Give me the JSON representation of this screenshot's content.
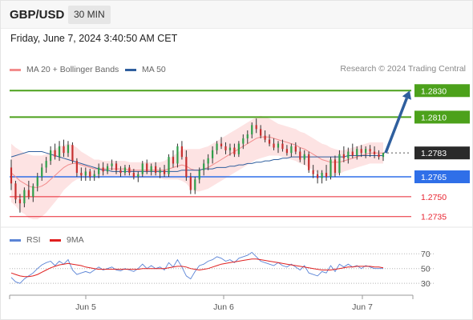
{
  "header": {
    "symbol": "GBP/USD",
    "timeframe": "30 MIN"
  },
  "datetime": "Friday, June 7, 2024 3:40:50 AM CET",
  "legend": {
    "ma20": {
      "label": "MA 20 + Bollinger Bands",
      "color": "#f28c8c"
    },
    "ma50": {
      "label": "MA 50",
      "color": "#2f5f9e"
    },
    "rsi": {
      "label": "RSI",
      "color": "#5b84d6"
    },
    "ma9": {
      "label": "9MA",
      "color": "#e02020"
    }
  },
  "credit": "Research © 2024 Trading Central",
  "chart_data": {
    "type": "candlestick",
    "y_range": [
      1.2727,
      1.2838
    ],
    "levels": [
      {
        "value": 1.283,
        "label": "1.2830",
        "kind": "target",
        "color": "#4ca11b"
      },
      {
        "value": 1.281,
        "label": "1.2810",
        "kind": "target",
        "color": "#4ca11b"
      },
      {
        "value": 1.2783,
        "label": "1.2783",
        "kind": "last",
        "color": "#2a2a2a"
      },
      {
        "value": 1.2765,
        "label": "1.2765",
        "kind": "pivot",
        "color": "#2f6fe8"
      },
      {
        "value": 1.275,
        "label": "1.2750",
        "kind": "support",
        "color": "#e8232f"
      },
      {
        "value": 1.2735,
        "label": "1.2735",
        "kind": "support",
        "color": "#e8232f"
      }
    ],
    "candles": [
      [
        1.2772,
        1.2778,
        1.2755,
        1.276
      ],
      [
        1.276,
        1.2762,
        1.2745,
        1.2748
      ],
      [
        1.2748,
        1.2752,
        1.2738,
        1.2745
      ],
      [
        1.2745,
        1.2757,
        1.2742,
        1.2755
      ],
      [
        1.2755,
        1.2762,
        1.2748,
        1.275
      ],
      [
        1.275,
        1.276,
        1.2746,
        1.2758
      ],
      [
        1.2758,
        1.2768,
        1.2754,
        1.2765
      ],
      [
        1.2765,
        1.2775,
        1.2762,
        1.2772
      ],
      [
        1.2772,
        1.278,
        1.2768,
        1.2777
      ],
      [
        1.2777,
        1.2788,
        1.2774,
        1.2785
      ],
      [
        1.2785,
        1.279,
        1.2778,
        1.278
      ],
      [
        1.278,
        1.2792,
        1.2777,
        1.2788
      ],
      [
        1.2788,
        1.2793,
        1.278,
        1.2783
      ],
      [
        1.2783,
        1.2792,
        1.278,
        1.2789
      ],
      [
        1.2789,
        1.2791,
        1.2775,
        1.2777
      ],
      [
        1.2777,
        1.2779,
        1.2765,
        1.2768
      ],
      [
        1.2768,
        1.2772,
        1.2762,
        1.2766
      ],
      [
        1.2766,
        1.2772,
        1.2762,
        1.2769
      ],
      [
        1.2769,
        1.2771,
        1.2762,
        1.2765
      ],
      [
        1.2765,
        1.277,
        1.2762,
        1.2767
      ],
      [
        1.2767,
        1.2775,
        1.2764,
        1.2772
      ],
      [
        1.2772,
        1.2776,
        1.2766,
        1.2769
      ],
      [
        1.2769,
        1.2775,
        1.2767,
        1.2773
      ],
      [
        1.2773,
        1.2778,
        1.277,
        1.2775
      ],
      [
        1.2775,
        1.2777,
        1.2767,
        1.277
      ],
      [
        1.277,
        1.2773,
        1.2765,
        1.2768
      ],
      [
        1.2768,
        1.2774,
        1.2766,
        1.2772
      ],
      [
        1.2772,
        1.2774,
        1.2766,
        1.2768
      ],
      [
        1.2768,
        1.2771,
        1.2763,
        1.2765
      ],
      [
        1.2765,
        1.2769,
        1.2761,
        1.2767
      ],
      [
        1.2767,
        1.2777,
        1.2765,
        1.2775
      ],
      [
        1.2775,
        1.2778,
        1.2767,
        1.2769
      ],
      [
        1.2769,
        1.2775,
        1.2766,
        1.2773
      ],
      [
        1.2773,
        1.2776,
        1.2766,
        1.2768
      ],
      [
        1.2768,
        1.2772,
        1.2764,
        1.277
      ],
      [
        1.277,
        1.2774,
        1.2765,
        1.2767
      ],
      [
        1.2767,
        1.2782,
        1.2765,
        1.278
      ],
      [
        1.278,
        1.2785,
        1.2772,
        1.2775
      ],
      [
        1.2775,
        1.279,
        1.2772,
        1.2788
      ],
      [
        1.2788,
        1.2792,
        1.2778,
        1.278
      ],
      [
        1.278,
        1.2785,
        1.2762,
        1.2765
      ],
      [
        1.2765,
        1.2768,
        1.2752,
        1.2755
      ],
      [
        1.2755,
        1.2765,
        1.2752,
        1.2763
      ],
      [
        1.2763,
        1.2772,
        1.276,
        1.277
      ],
      [
        1.277,
        1.2778,
        1.2766,
        1.2775
      ],
      [
        1.2775,
        1.2782,
        1.277,
        1.2779
      ],
      [
        1.2779,
        1.2788,
        1.2775,
        1.2785
      ],
      [
        1.2785,
        1.2792,
        1.2782,
        1.279
      ],
      [
        1.279,
        1.2795,
        1.2786,
        1.2788
      ],
      [
        1.2788,
        1.2791,
        1.2782,
        1.2785
      ],
      [
        1.2785,
        1.279,
        1.2781,
        1.2787
      ],
      [
        1.2787,
        1.279,
        1.278,
        1.2782
      ],
      [
        1.2782,
        1.2792,
        1.278,
        1.279
      ],
      [
        1.279,
        1.2797,
        1.2786,
        1.2794
      ],
      [
        1.2794,
        1.28,
        1.279,
        1.2797
      ],
      [
        1.2797,
        1.2806,
        1.2794,
        1.2804
      ],
      [
        1.2804,
        1.2809,
        1.2798,
        1.2801
      ],
      [
        1.2801,
        1.2804,
        1.2794,
        1.2796
      ],
      [
        1.2796,
        1.28,
        1.2791,
        1.2793
      ],
      [
        1.2793,
        1.2797,
        1.2788,
        1.279
      ],
      [
        1.279,
        1.2794,
        1.2785,
        1.2787
      ],
      [
        1.2787,
        1.2792,
        1.2783,
        1.279
      ],
      [
        1.279,
        1.2793,
        1.2784,
        1.2786
      ],
      [
        1.2786,
        1.2789,
        1.2781,
        1.2783
      ],
      [
        1.2783,
        1.279,
        1.278,
        1.2788
      ],
      [
        1.2788,
        1.2791,
        1.2782,
        1.2784
      ],
      [
        1.2784,
        1.2787,
        1.2776,
        1.2778
      ],
      [
        1.2778,
        1.2785,
        1.2774,
        1.2782
      ],
      [
        1.2782,
        1.2784,
        1.2768,
        1.277
      ],
      [
        1.277,
        1.2774,
        1.2764,
        1.2767
      ],
      [
        1.2767,
        1.277,
        1.276,
        1.2764
      ],
      [
        1.2764,
        1.277,
        1.276,
        1.2768
      ],
      [
        1.2768,
        1.2774,
        1.2762,
        1.2765
      ],
      [
        1.2765,
        1.278,
        1.2763,
        1.2778
      ],
      [
        1.2778,
        1.2781,
        1.2765,
        1.2768
      ],
      [
        1.2768,
        1.2785,
        1.2766,
        1.2782
      ],
      [
        1.2782,
        1.2788,
        1.2776,
        1.2779
      ],
      [
        1.2779,
        1.2787,
        1.2775,
        1.2784
      ],
      [
        1.2784,
        1.279,
        1.2779,
        1.2781
      ],
      [
        1.2781,
        1.2788,
        1.2778,
        1.2786
      ],
      [
        1.2786,
        1.2789,
        1.278,
        1.2783
      ],
      [
        1.2783,
        1.2788,
        1.2779,
        1.2786
      ],
      [
        1.2786,
        1.2789,
        1.278,
        1.2784
      ],
      [
        1.2784,
        1.2788,
        1.2779,
        1.2782
      ],
      [
        1.2782,
        1.2785,
        1.2778,
        1.278
      ],
      [
        1.278,
        1.2783,
        1.2777,
        1.2783
      ]
    ],
    "ma20": [
      1.2768,
      1.2765,
      1.2762,
      1.276,
      1.2758,
      1.2757,
      1.2757,
      1.2758,
      1.276,
      1.2763,
      1.2766,
      1.2769,
      1.2772,
      1.2774,
      1.2775,
      1.2775,
      1.2774,
      1.2773,
      1.2772,
      1.2771,
      1.2771,
      1.2771,
      1.2771,
      1.2771,
      1.2771,
      1.2771,
      1.2771,
      1.277,
      1.277,
      1.277,
      1.277,
      1.277,
      1.277,
      1.277,
      1.277,
      1.277,
      1.2771,
      1.2772,
      1.2773,
      1.2774,
      1.2773,
      1.2771,
      1.277,
      1.277,
      1.2771,
      1.2772,
      1.2774,
      1.2776,
      1.2778,
      1.278,
      1.2782,
      1.2784,
      1.2786,
      1.2788,
      1.279,
      1.2792,
      1.2794,
      1.2795,
      1.2795,
      1.2795,
      1.2794,
      1.2793,
      1.2792,
      1.2791,
      1.279,
      1.2789,
      1.2787,
      1.2786,
      1.2784,
      1.2782,
      1.278,
      1.2778,
      1.2777,
      1.2776,
      1.2776,
      1.2776,
      1.2777,
      1.2778,
      1.2779,
      1.278,
      1.2781,
      1.2782,
      1.2783,
      1.2783,
      1.2783,
      1.2783
    ],
    "bb_width": [
      0.0022,
      0.0022,
      0.0023,
      0.0023,
      0.0024,
      0.0024,
      0.0024,
      0.0023,
      0.0022,
      0.0021,
      0.002,
      0.0019,
      0.0017,
      0.0016,
      0.0014,
      0.0012,
      0.001,
      0.0009,
      0.0008,
      0.0007,
      0.0007,
      0.0006,
      0.0006,
      0.0006,
      0.0006,
      0.0006,
      0.0006,
      0.0006,
      0.0006,
      0.0006,
      0.0006,
      0.0006,
      0.0006,
      0.0006,
      0.0006,
      0.0007,
      0.0008,
      0.0009,
      0.001,
      0.0012,
      0.0013,
      0.0015,
      0.0016,
      0.0016,
      0.0016,
      0.0016,
      0.0016,
      0.0016,
      0.0016,
      0.0016,
      0.0016,
      0.0016,
      0.0016,
      0.0016,
      0.0016,
      0.0016,
      0.0016,
      0.0016,
      0.0015,
      0.0014,
      0.0013,
      0.0012,
      0.0012,
      0.0012,
      0.0012,
      0.0012,
      0.0012,
      0.0012,
      0.0012,
      0.0012,
      0.0012,
      0.0012,
      0.0012,
      0.0011,
      0.001,
      0.0009,
      0.0008,
      0.0008,
      0.0008,
      0.0008,
      0.0008,
      0.0008,
      0.0008,
      0.0008,
      0.0008,
      0.0008
    ],
    "ma50": [
      1.278,
      1.2781,
      1.2782,
      1.2783,
      1.2784,
      1.2784,
      1.2784,
      1.2784,
      1.2783,
      1.2782,
      1.2781,
      1.278,
      1.2779,
      1.2778,
      1.2777,
      1.2776,
      1.2775,
      1.2774,
      1.2773,
      1.2772,
      1.2771,
      1.277,
      1.277,
      1.2769,
      1.2769,
      1.2769,
      1.2769,
      1.2769,
      1.2769,
      1.2769,
      1.2769,
      1.2769,
      1.2769,
      1.2769,
      1.2769,
      1.2769,
      1.2769,
      1.2769,
      1.2769,
      1.277,
      1.277,
      1.277,
      1.277,
      1.277,
      1.2771,
      1.2771,
      1.2771,
      1.2772,
      1.2772,
      1.2772,
      1.2773,
      1.2773,
      1.2774,
      1.2774,
      1.2775,
      1.2775,
      1.2776,
      1.2776,
      1.2777,
      1.2777,
      1.2778,
      1.2778,
      1.2779,
      1.2779,
      1.278,
      1.278,
      1.278,
      1.278,
      1.278,
      1.278,
      1.278,
      1.278,
      1.278,
      1.278,
      1.278,
      1.278,
      1.278,
      1.2781,
      1.2781,
      1.2781,
      1.2781,
      1.2781,
      1.2781,
      1.2781,
      1.2781,
      1.2781
    ],
    "forecast_arrow": {
      "from": 1.2783,
      "to": 1.283
    },
    "x_labels": [
      "Jun 5",
      "Jun 6",
      "Jun 7"
    ],
    "rsi": {
      "levels": [
        70,
        50,
        30
      ],
      "y_range": [
        15,
        80
      ],
      "rsi": [
        38,
        32,
        30,
        36,
        40,
        44,
        50,
        55,
        58,
        60,
        54,
        60,
        56,
        62,
        48,
        42,
        44,
        46,
        44,
        48,
        52,
        48,
        50,
        52,
        48,
        47,
        50,
        48,
        46,
        50,
        56,
        50,
        54,
        50,
        52,
        48,
        58,
        52,
        62,
        52,
        40,
        36,
        46,
        54,
        56,
        60,
        62,
        66,
        64,
        60,
        62,
        58,
        64,
        66,
        68,
        72,
        66,
        60,
        58,
        56,
        54,
        58,
        54,
        52,
        56,
        52,
        48,
        54,
        44,
        42,
        40,
        46,
        44,
        54,
        46,
        56,
        52,
        56,
        52,
        54,
        50,
        54,
        52,
        50,
        50,
        50
      ],
      "ma9": [
        44,
        42,
        40,
        39,
        39,
        40,
        42,
        45,
        48,
        51,
        53,
        55,
        56,
        57,
        56,
        55,
        54,
        52,
        51,
        50,
        49,
        49,
        49,
        49,
        49,
        49,
        49,
        49,
        49,
        49,
        50,
        50,
        50,
        50,
        50,
        50,
        51,
        52,
        53,
        53,
        52,
        50,
        49,
        48,
        49,
        50,
        52,
        54,
        56,
        57,
        58,
        59,
        60,
        61,
        62,
        63,
        63,
        62,
        61,
        60,
        59,
        58,
        57,
        56,
        55,
        54,
        53,
        52,
        51,
        50,
        49,
        48,
        48,
        48,
        49,
        50,
        51,
        52,
        52,
        53,
        53,
        53,
        53,
        52,
        52,
        51
      ]
    },
    "rsi_scale_labels": [
      "70",
      "50",
      "30"
    ]
  }
}
